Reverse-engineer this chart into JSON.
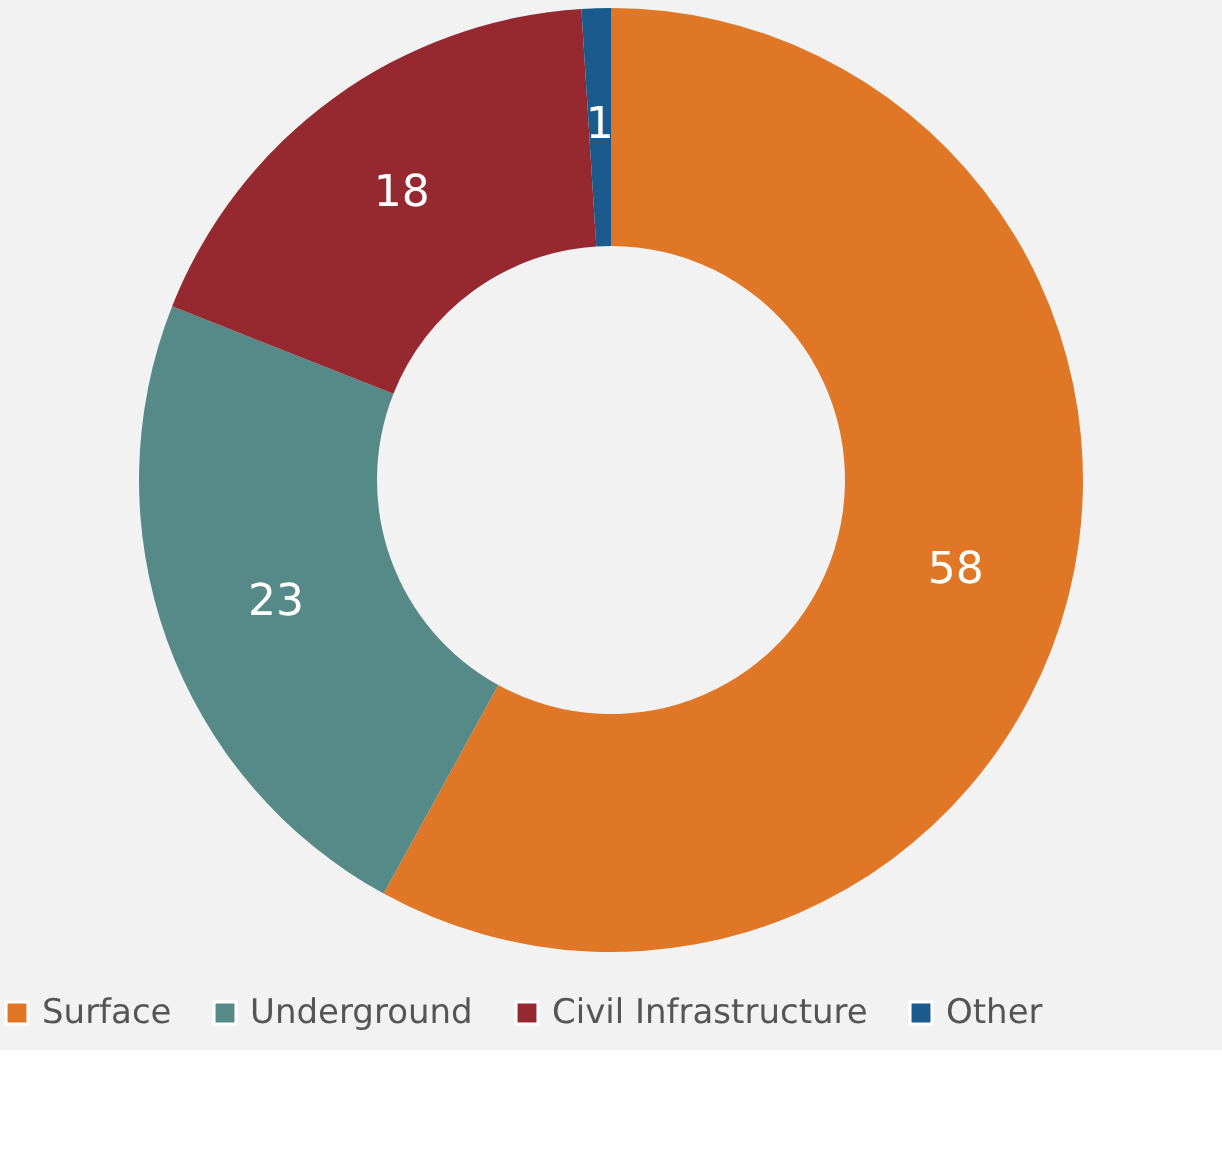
{
  "chart_data": {
    "type": "donut",
    "categories": [
      "Surface",
      "Underground",
      "Civil Infrastructure",
      "Other"
    ],
    "values": [
      58,
      23,
      18,
      1
    ],
    "colors": [
      "#e07726",
      "#568a88",
      "#962830",
      "#1a5a8c"
    ],
    "data_labels": true,
    "legend": "bottom"
  }
}
